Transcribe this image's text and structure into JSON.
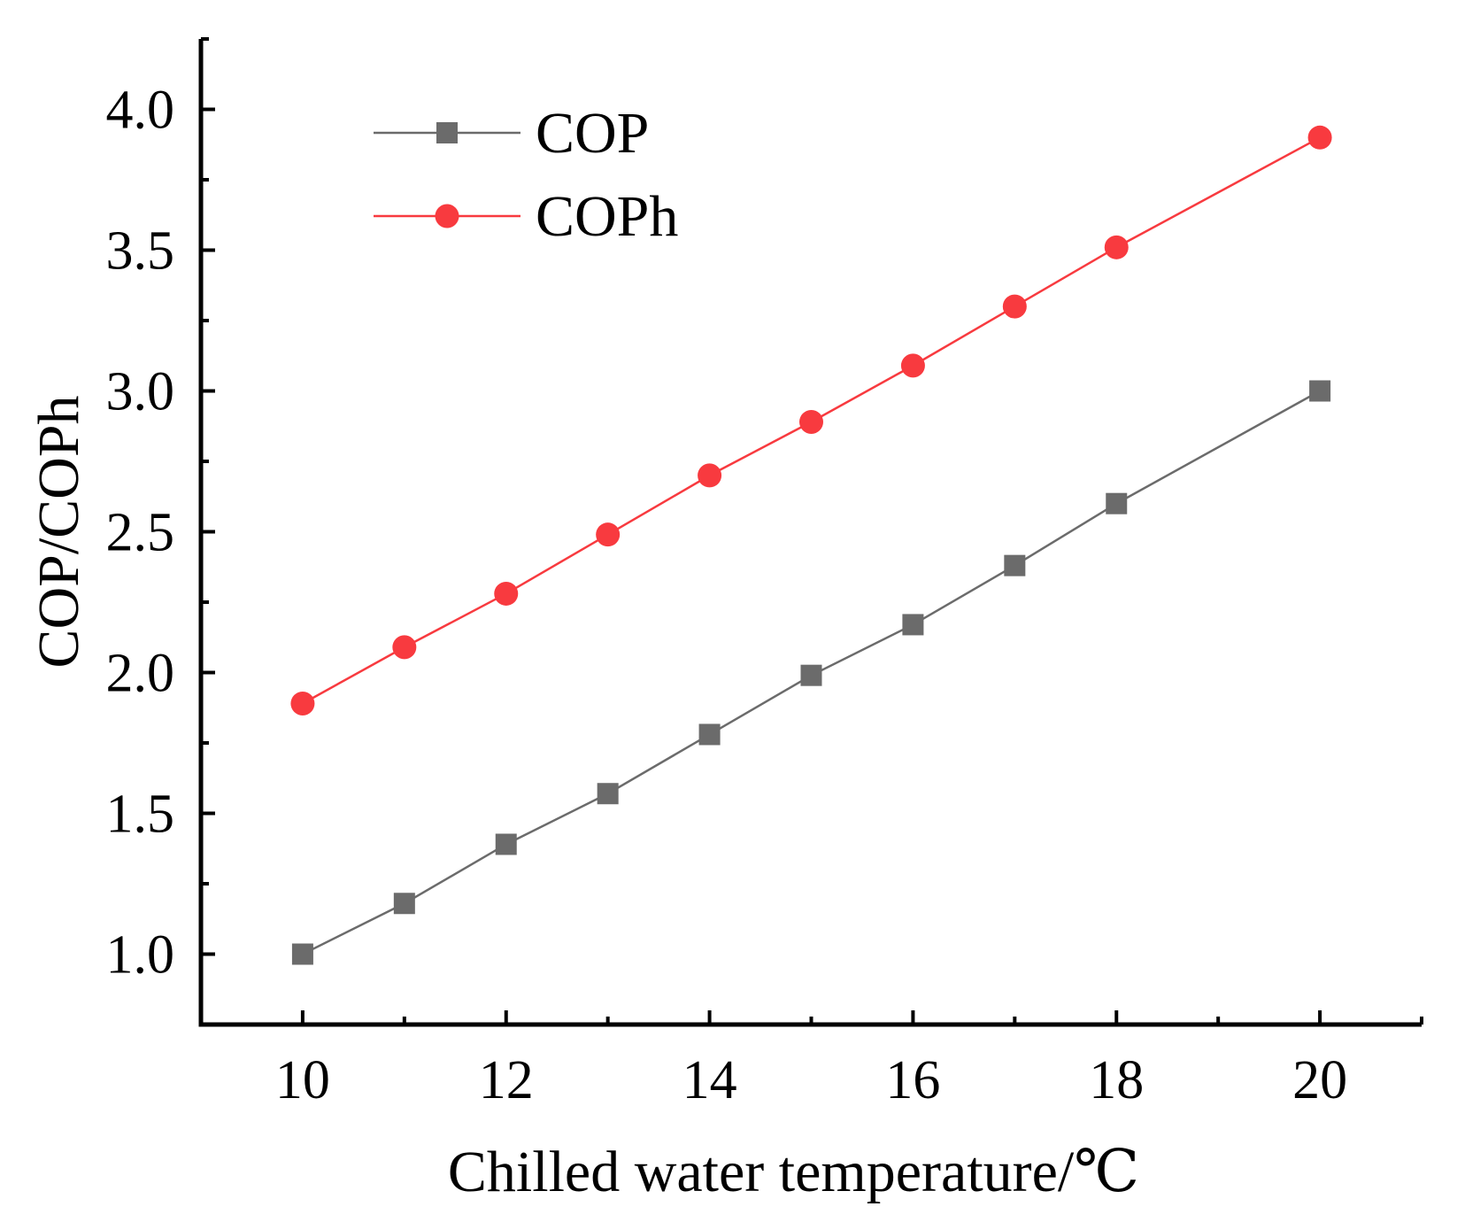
{
  "chart_data": {
    "type": "line",
    "title": "",
    "xlabel": "Chilled water temperature/℃",
    "ylabel": "COP/COPh",
    "xlim": [
      9,
      21
    ],
    "ylim": [
      0.75,
      4.25
    ],
    "x_ticks": [
      10,
      12,
      14,
      16,
      18,
      20
    ],
    "x_tick_labels": [
      "10",
      "12",
      "14",
      "16",
      "18",
      "20"
    ],
    "y_ticks": [
      1.0,
      1.5,
      2.0,
      2.5,
      3.0,
      3.5,
      4.0
    ],
    "y_tick_labels": [
      "1.0",
      "1.5",
      "2.0",
      "2.5",
      "3.0",
      "3.5",
      "4.0"
    ],
    "grid": false,
    "legend_position": "top-left",
    "series": [
      {
        "name": "COP",
        "color": "#6b6b6b",
        "marker": "square",
        "x": [
          10,
          11,
          12,
          13,
          14,
          15,
          16,
          17,
          18,
          20
        ],
        "values": [
          1.0,
          1.18,
          1.39,
          1.57,
          1.78,
          1.99,
          2.17,
          2.38,
          2.6,
          3.0
        ]
      },
      {
        "name": "COPh",
        "color": "#f83a3f",
        "marker": "circle",
        "x": [
          10,
          11,
          12,
          13,
          14,
          15,
          16,
          17,
          18,
          20
        ],
        "values": [
          1.89,
          2.09,
          2.28,
          2.49,
          2.7,
          2.89,
          3.09,
          3.3,
          3.51,
          3.9
        ]
      }
    ]
  }
}
